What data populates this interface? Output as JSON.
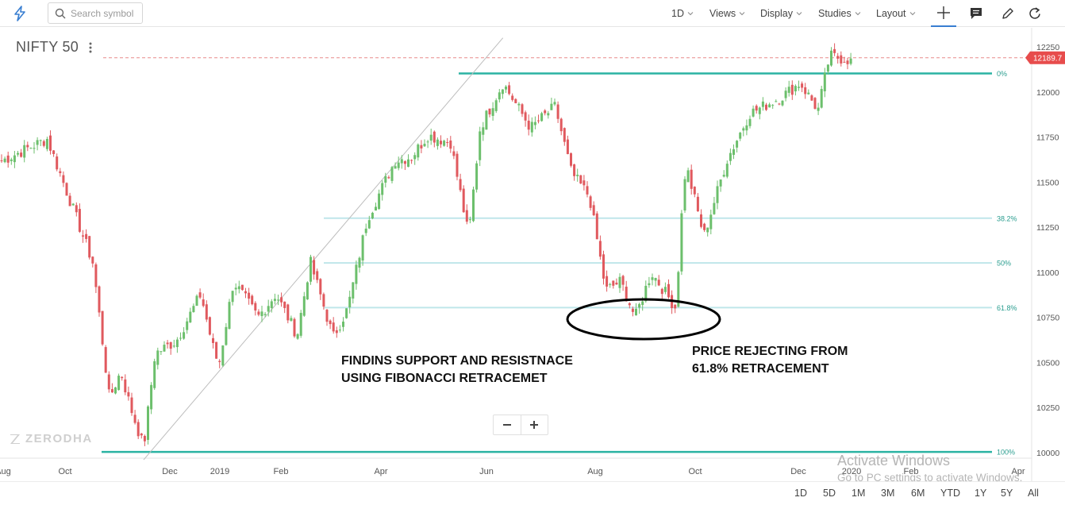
{
  "toolbar": {
    "search_placeholder": "Search symbol",
    "interval": "1D",
    "views": "Views",
    "display": "Display",
    "studies": "Studies",
    "layout": "Layout"
  },
  "instrument": {
    "name": "NIFTY 50"
  },
  "watermark": "ZERODHA",
  "annotations": {
    "left_line1": "FINDINS SUPPORT AND RESISTNACE",
    "left_line2": "USING FIBONACCI RETRACEMET",
    "right_line1": "PRICE REJECTING FROM",
    "right_line2": "61.8% RETRACEMENT"
  },
  "range_buttons": [
    "1D",
    "5D",
    "1M",
    "3M",
    "6M",
    "YTD",
    "1Y",
    "5Y",
    "All"
  ],
  "os_overlay": {
    "line1": "Activate Windows",
    "line2": "Go to PC settings to activate Windows."
  },
  "colors": {
    "up": "#6cbf6c",
    "down": "#e0595e",
    "fib_main": "#2bb3a3",
    "fib_level": "#bfe6ea",
    "price_tag": "#e74c4c",
    "accent": "#387ed1"
  },
  "chart_data": {
    "type": "candlestick",
    "instrument": "NIFTY 50",
    "interval": "1D",
    "last_price": "12189.7",
    "ylim": [
      9950,
      12300
    ],
    "y_ticks": [
      10000,
      10250,
      10500,
      10750,
      11000,
      11250,
      11500,
      11750,
      12000,
      12250
    ],
    "x_ticks": [
      "Aug",
      "Oct",
      "Dec",
      "2019",
      "Feb",
      "Apr",
      "Jun",
      "Aug",
      "Oct",
      "Dec",
      "2020",
      "Feb",
      "Apr"
    ],
    "fib_levels": [
      {
        "label": "0%",
        "price": 12103
      },
      {
        "label": "38.2%",
        "price": 11300
      },
      {
        "label": "50%",
        "price": 11052
      },
      {
        "label": "61.8%",
        "price": 10804
      },
      {
        "label": "100%",
        "price": 10004
      }
    ],
    "trendline": {
      "from": [
        "2018-10-26",
        9960
      ],
      "to": [
        "2019-06-03",
        12300
      ]
    },
    "price_path": [
      [
        "2018-07-27",
        11600
      ],
      [
        "2018-08-28",
        11740
      ],
      [
        "2018-09-10",
        11420
      ],
      [
        "2018-09-25",
        11050
      ],
      [
        "2018-10-05",
        10300
      ],
      [
        "2018-10-12",
        10450
      ],
      [
        "2018-10-18",
        10250
      ],
      [
        "2018-10-26",
        10030
      ],
      [
        "2018-11-02",
        10550
      ],
      [
        "2018-11-15",
        10620
      ],
      [
        "2018-11-30",
        10880
      ],
      [
        "2018-12-07",
        10600
      ],
      [
        "2018-12-11",
        10480
      ],
      [
        "2018-12-20",
        10950
      ],
      [
        "2019-01-04",
        10750
      ],
      [
        "2019-01-15",
        10880
      ],
      [
        "2019-01-28",
        10650
      ],
      [
        "2019-02-05",
        11060
      ],
      [
        "2019-02-19",
        10640
      ],
      [
        "2019-02-28",
        10800
      ],
      [
        "2019-03-12",
        11300
      ],
      [
        "2019-03-29",
        11620
      ],
      [
        "2019-04-08",
        11640
      ],
      [
        "2019-04-18",
        11760
      ],
      [
        "2019-05-02",
        11720
      ],
      [
        "2019-05-13",
        11200
      ],
      [
        "2019-05-20",
        11800
      ],
      [
        "2019-06-03",
        12050
      ],
      [
        "2019-06-20",
        11800
      ],
      [
        "2019-07-05",
        11920
      ],
      [
        "2019-07-15",
        11550
      ],
      [
        "2019-07-26",
        11420
      ],
      [
        "2019-08-05",
        10900
      ],
      [
        "2019-08-14",
        10950
      ],
      [
        "2019-08-23",
        10750
      ],
      [
        "2019-09-02",
        11000
      ],
      [
        "2019-09-17",
        10800
      ],
      [
        "2019-09-20",
        11270
      ],
      [
        "2019-09-23",
        11600
      ],
      [
        "2019-10-04",
        11200
      ],
      [
        "2019-10-18",
        11620
      ],
      [
        "2019-11-01",
        11880
      ],
      [
        "2019-11-20",
        11970
      ],
      [
        "2019-12-02",
        12050
      ],
      [
        "2019-12-13",
        11900
      ],
      [
        "2019-12-20",
        12200
      ],
      [
        "2019-12-31",
        12180
      ],
      [
        "2020-01-06",
        12150
      ],
      [
        "2020-01-14",
        12180
      ]
    ]
  }
}
